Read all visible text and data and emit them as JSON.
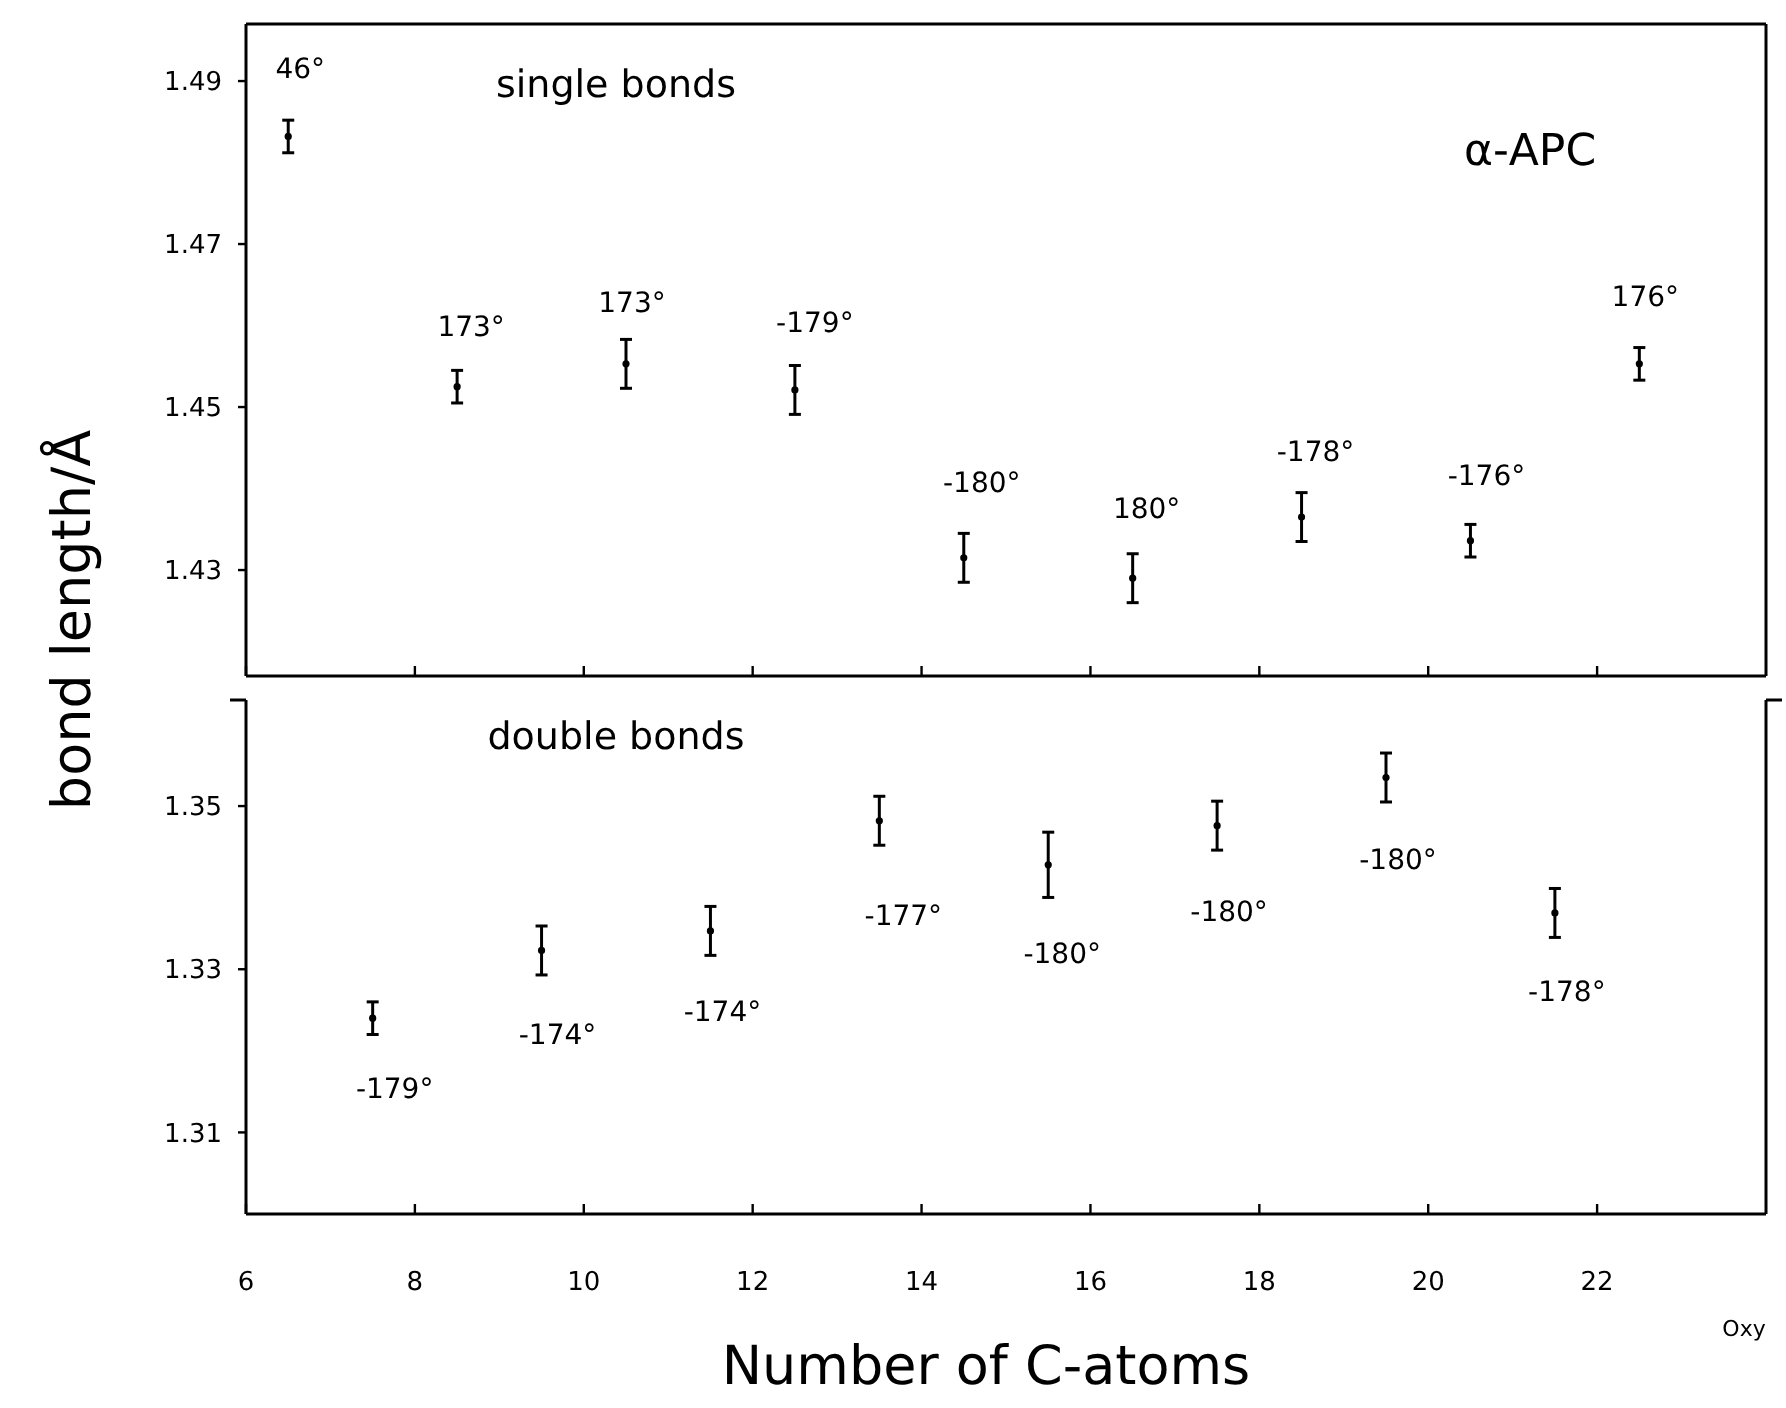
{
  "chart_data": [
    {
      "type": "scatter",
      "title": "single bonds",
      "ylabel": "bond length/Å",
      "grid": false,
      "tick_labels": "y",
      "xlim": [
        6,
        24
      ],
      "xticks": [
        {
          "value": 6,
          "label": null
        },
        {
          "value": 8,
          "label": null
        },
        {
          "value": 10,
          "label": null
        },
        {
          "value": 12,
          "label": null
        },
        {
          "value": 14,
          "label": null
        },
        {
          "value": 16,
          "label": null
        },
        {
          "value": 18,
          "label": null
        },
        {
          "value": 20,
          "label": null
        },
        {
          "value": 22,
          "label": null
        }
      ],
      "ylim": [
        1.417,
        1.497
      ],
      "yticks": [
        1.43,
        1.45,
        1.47,
        1.49
      ],
      "series": [
        {
          "color": "#000000",
          "x": [
            6.5,
            8.5,
            10.5,
            12.5,
            14.5,
            16.5,
            18.5,
            20.5,
            22.5
          ],
          "values": [
            1.4832,
            1.4525,
            1.4553,
            1.4521,
            1.4315,
            1.429,
            1.4365,
            1.4336,
            1.4553
          ],
          "errors": [
            0.002,
            0.002,
            0.003,
            0.003,
            0.003,
            0.003,
            0.003,
            0.002,
            0.002
          ]
        }
      ],
      "annotations": [
        "α-APC",
        "46°",
        "173°",
        "173°",
        "-179°",
        "-180°",
        "180°",
        "-178°",
        "-176°",
        "176°"
      ]
    },
    {
      "type": "scatter",
      "title": "double bonds",
      "xlabel": "Number of C-atoms",
      "grid": false,
      "xlim": [
        6,
        24
      ],
      "xticks": [
        6,
        8,
        10,
        12,
        14,
        16,
        18,
        20,
        22
      ],
      "ylim": [
        1.3,
        1.363
      ],
      "yticks": [
        1.31,
        1.33,
        1.35
      ],
      "series": [
        {
          "color": "#000000",
          "x": [
            7.5,
            9.5,
            11.5,
            13.5,
            15.5,
            17.5,
            19.5,
            21.5
          ],
          "values": [
            1.324,
            1.3323,
            1.3347,
            1.3482,
            1.3428,
            1.3476,
            1.3535,
            1.3369
          ],
          "errors": [
            0.002,
            0.003,
            0.003,
            0.003,
            0.004,
            0.003,
            0.003,
            0.003
          ]
        }
      ],
      "annotations": [
        "Oxy",
        "-179°",
        "-174°",
        "-174°",
        "-177°",
        "-180°",
        "-180°",
        "-180°",
        "-178°"
      ]
    }
  ]
}
